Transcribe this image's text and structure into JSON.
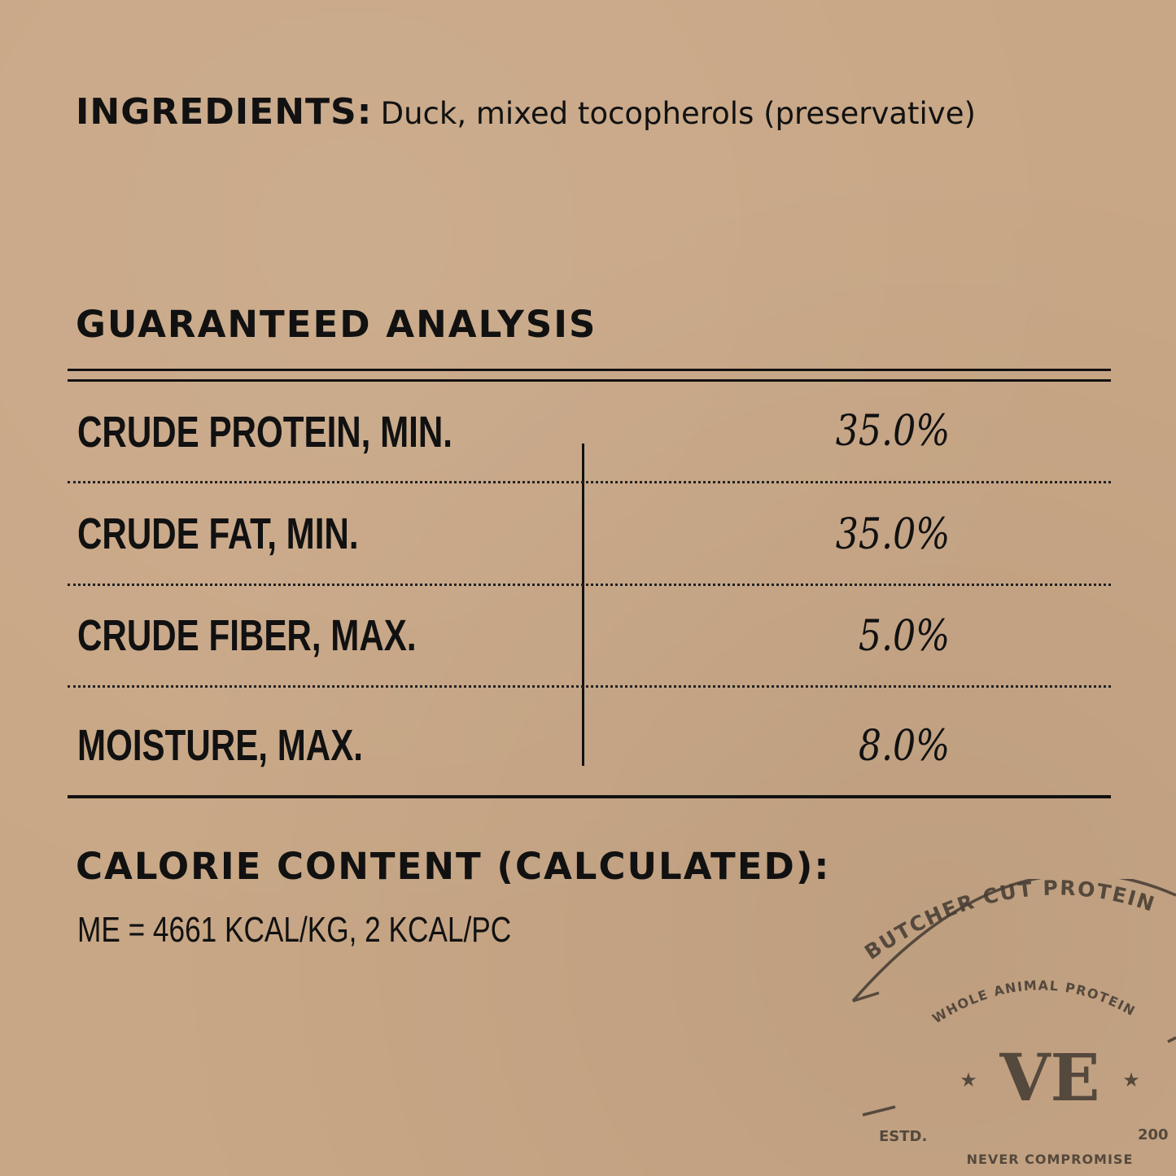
{
  "ingredients": {
    "label": "INGREDIENTS:",
    "text": "Duck, mixed tocopherols (preservative)"
  },
  "analysis": {
    "title": "GUARANTEED ANALYSIS",
    "rows": [
      {
        "label": "CRUDE PROTEIN, MIN.",
        "value": "35.0%"
      },
      {
        "label": "CRUDE FAT, MIN.",
        "value": "35.0%"
      },
      {
        "label": "CRUDE FIBER, MAX.",
        "value": "5.0%"
      },
      {
        "label": "MOISTURE, MAX.",
        "value": "8.0%"
      }
    ]
  },
  "calorie": {
    "title": "CALORIE CONTENT (CALCULATED):",
    "text": "ME = 4661 KCAL/KG, 2 KCAL/PC"
  },
  "stamp": {
    "outer": "BUTCHER CUT PROTEIN",
    "inner": "WHOLE ANIMAL PROTEIN",
    "monogram": "VE",
    "estd": "ESTD.",
    "year": "200",
    "bottom": "NEVER COMPROMISE",
    "outer2": "BUTCHER CUT PROTEIN",
    "color": "#4a3f35"
  }
}
